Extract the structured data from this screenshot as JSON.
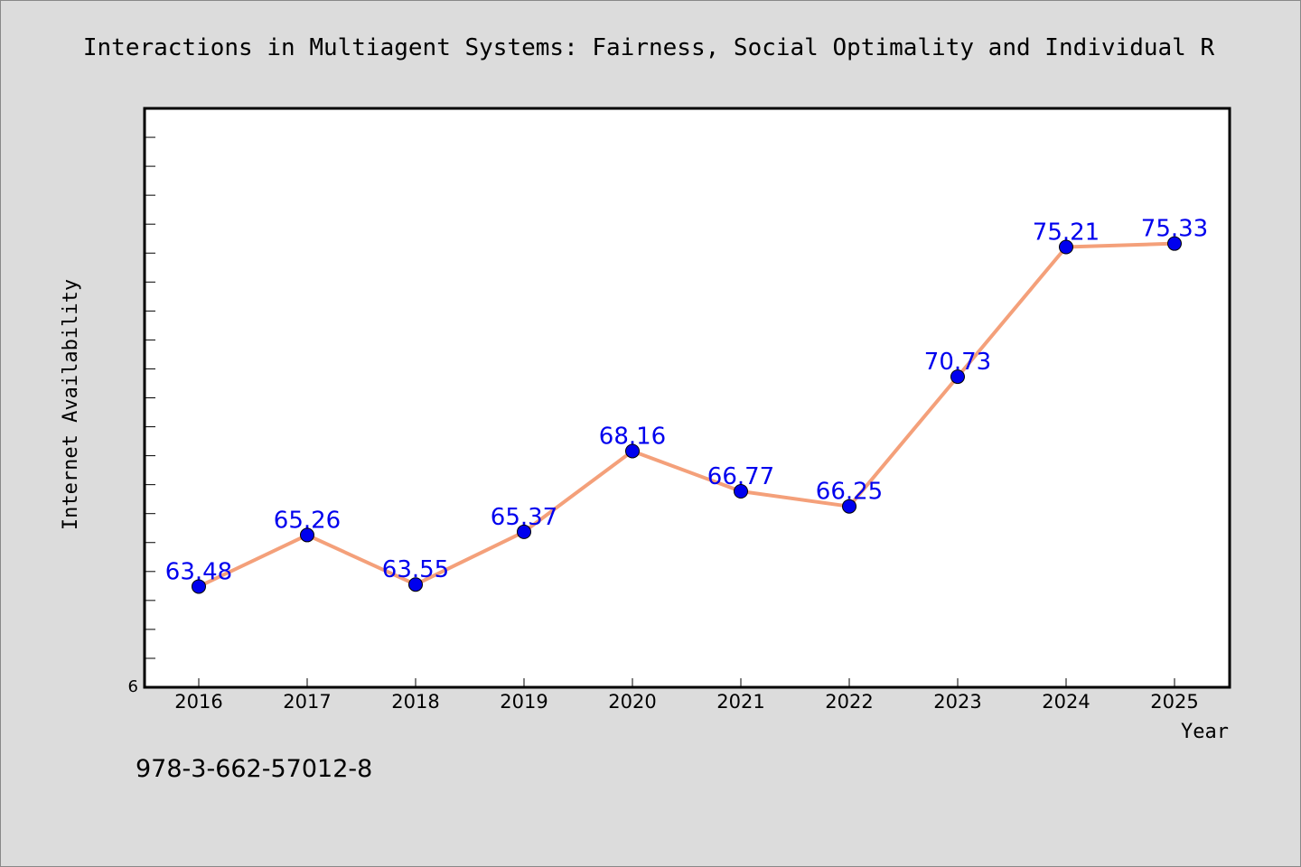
{
  "chart_data": {
    "type": "line",
    "title": "Interactions in Multiagent Systems: Fairness, Social Optimality and Individual R",
    "xlabel": "Year",
    "ylabel": "Internet Availability",
    "categories": [
      "2016",
      "2017",
      "2018",
      "2019",
      "2020",
      "2021",
      "2022",
      "2023",
      "2024",
      "2025"
    ],
    "values": [
      63.48,
      65.26,
      63.55,
      65.37,
      68.16,
      66.77,
      66.25,
      70.73,
      75.21,
      75.33
    ],
    "data_labels": [
      "63.48",
      "65.26",
      "63.55",
      "65.37",
      "68.16",
      "66.77",
      "66.25",
      "70.73",
      "75.21",
      "75.33"
    ],
    "y_tick_labels": [
      "6"
    ],
    "ylim": [
      60,
      80
    ],
    "grid": false,
    "legend": "none",
    "line_color": "#f4a07a",
    "marker_color": "#0000ee",
    "label_color": "#0000ee"
  },
  "footer": {
    "isbn": "978-3-662-57012-8"
  }
}
